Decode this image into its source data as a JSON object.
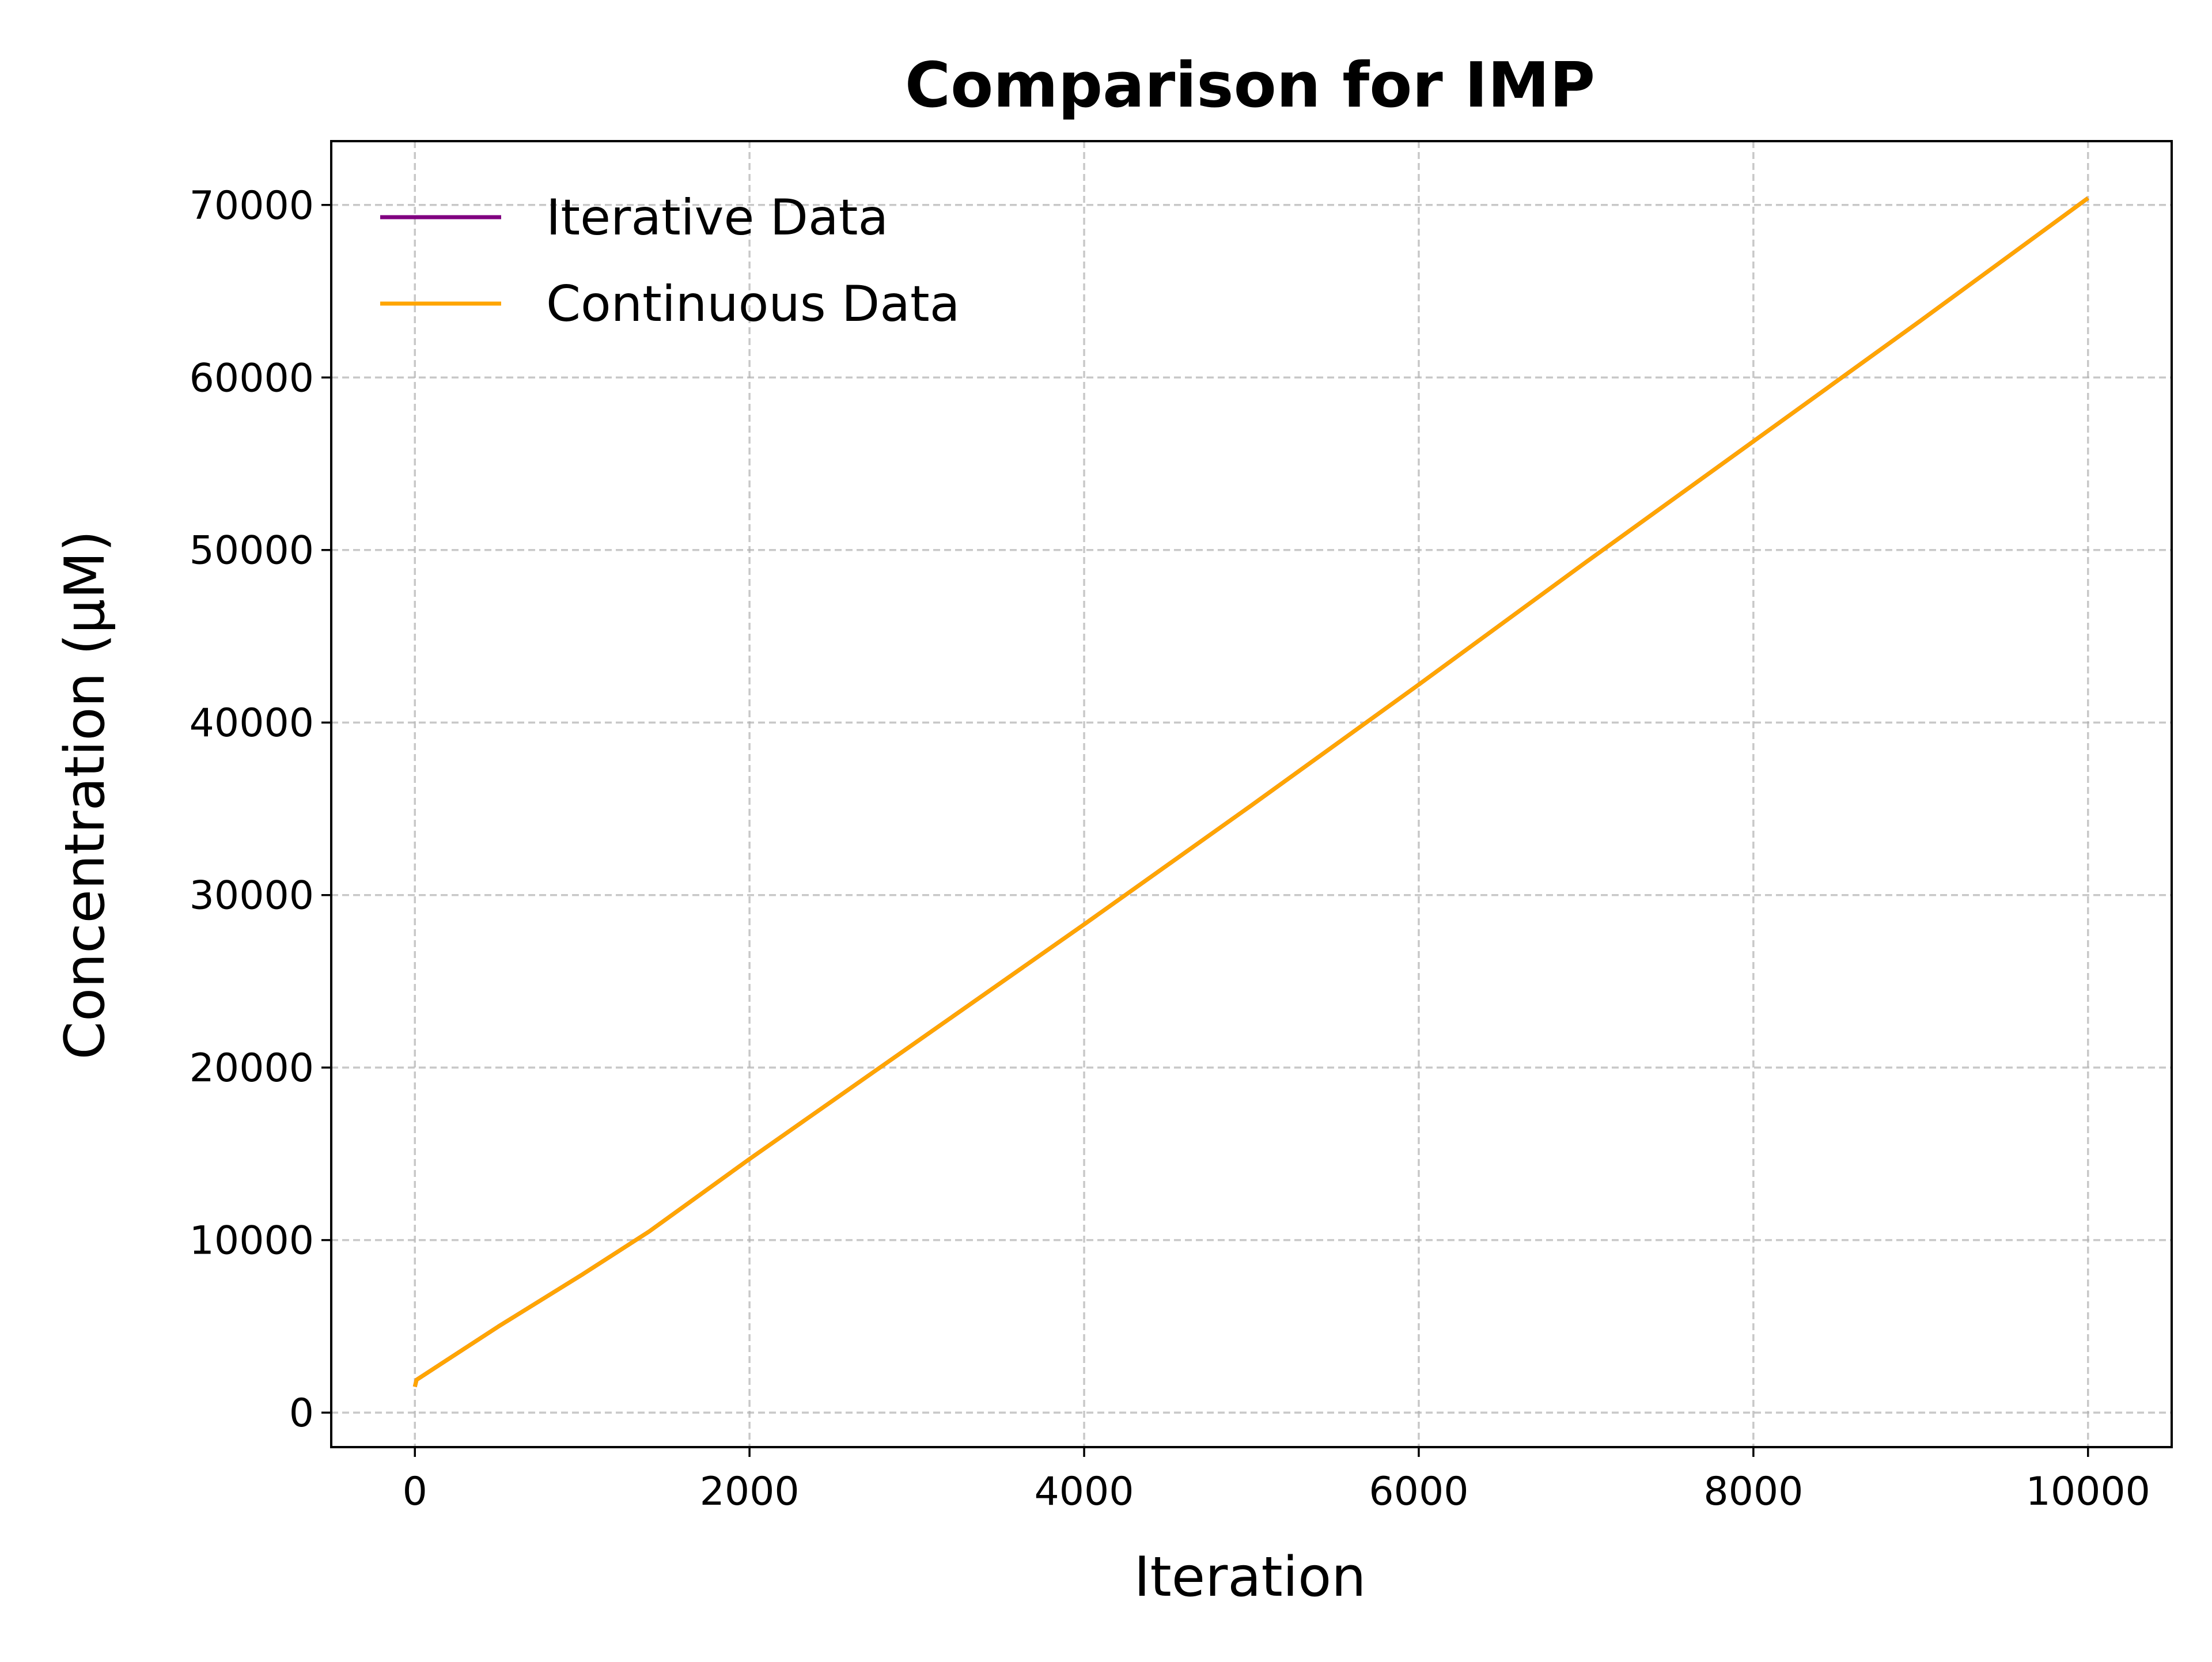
{
  "chart_data": {
    "type": "line",
    "title": "Comparison for IMP",
    "xlabel": "Iteration",
    "ylabel": "Concentration (μM)",
    "xlim": [
      -500,
      10500
    ],
    "ylim": [
      -2000,
      73700
    ],
    "xticks": [
      0,
      2000,
      4000,
      6000,
      8000,
      10000
    ],
    "yticks": [
      0,
      10000,
      20000,
      30000,
      40000,
      50000,
      60000,
      70000
    ],
    "grid": true,
    "legend_position": "upper left",
    "series": [
      {
        "name": "Iterative Data",
        "color": "#800080",
        "x": [
          0,
          10,
          500,
          1000,
          1400,
          2000,
          3000,
          4000,
          5000,
          6000,
          7000,
          8000,
          9000,
          10000
        ],
        "y": [
          1500,
          1900,
          5000,
          8000,
          10500,
          14700,
          21500,
          28300,
          35200,
          42200,
          49300,
          56300,
          63300,
          70400
        ]
      },
      {
        "name": "Continuous Data",
        "color": "#FFA500",
        "x": [
          0,
          10,
          500,
          1000,
          1400,
          2000,
          3000,
          4000,
          5000,
          6000,
          7000,
          8000,
          9000,
          10000
        ],
        "y": [
          1500,
          1900,
          5000,
          8000,
          10500,
          14700,
          21500,
          28300,
          35200,
          42200,
          49300,
          56300,
          63300,
          70400
        ]
      }
    ]
  }
}
